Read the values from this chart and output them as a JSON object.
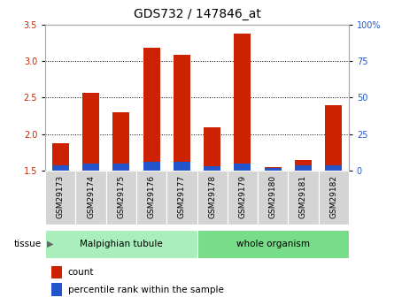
{
  "title": "GDS732 / 147846_at",
  "categories": [
    "GSM29173",
    "GSM29174",
    "GSM29175",
    "GSM29176",
    "GSM29177",
    "GSM29178",
    "GSM29179",
    "GSM29180",
    "GSM29181",
    "GSM29182"
  ],
  "count_values": [
    1.88,
    2.57,
    2.3,
    3.18,
    3.08,
    2.1,
    3.38,
    1.55,
    1.65,
    2.4
  ],
  "percentile_values": [
    4,
    5,
    5,
    6,
    6,
    3,
    5,
    2,
    4,
    4
  ],
  "ylim_left": [
    1.5,
    3.5
  ],
  "ylim_right": [
    0,
    100
  ],
  "yticks_left": [
    1.5,
    2.0,
    2.5,
    3.0,
    3.5
  ],
  "yticks_right": [
    0,
    25,
    50,
    75,
    100
  ],
  "ytick_labels_right": [
    "0",
    "25",
    "50",
    "75",
    "100%"
  ],
  "count_color": "#cc2200",
  "percentile_color": "#2255cc",
  "tissue_groups": [
    {
      "label": "Malpighian tubule",
      "start": 0,
      "end": 5,
      "color": "#aaeebb"
    },
    {
      "label": "whole organism",
      "start": 5,
      "end": 10,
      "color": "#77dd88"
    }
  ],
  "tissue_label": "tissue",
  "legend_items": [
    {
      "label": "count",
      "color": "#cc2200"
    },
    {
      "label": "percentile rank within the sample",
      "color": "#2255cc"
    }
  ],
  "title_fontsize": 10,
  "tick_fontsize": 7,
  "bar_width": 0.55
}
